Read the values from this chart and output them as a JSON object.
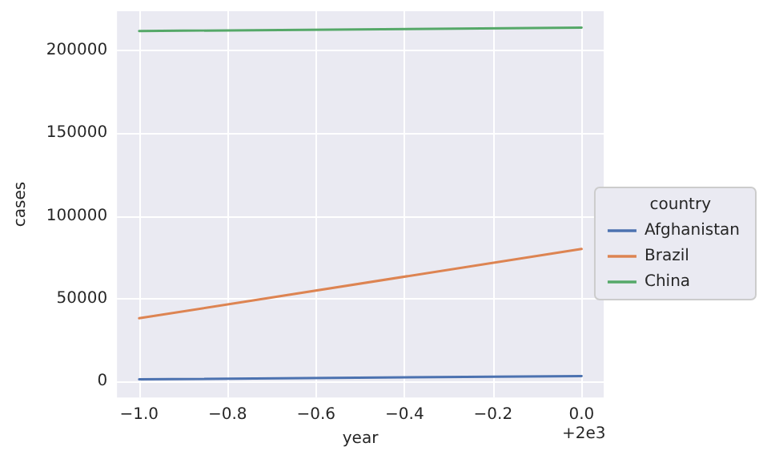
{
  "chart_data": {
    "type": "line",
    "xlabel": "year",
    "ylabel": "cases",
    "legend_title": "country",
    "x": [
      -1,
      0
    ],
    "series": [
      {
        "name": "Afghanistan",
        "color": "#4c72b0",
        "values": [
          1000,
          3000
        ]
      },
      {
        "name": "Brazil",
        "color": "#dd8452",
        "values": [
          38000,
          80000
        ]
      },
      {
        "name": "China",
        "color": "#55a868",
        "values": [
          212000,
          214000
        ]
      }
    ],
    "xlim": [
      -1.05,
      0.05
    ],
    "xticks": [
      {
        "value": -1,
        "label": "−1.0"
      },
      {
        "value": -0.8,
        "label": "−0.8"
      },
      {
        "value": -0.6,
        "label": "−0.6"
      },
      {
        "value": -0.4,
        "label": "−0.4"
      },
      {
        "value": -0.2,
        "label": "−0.2"
      },
      {
        "value": 0,
        "label": "0.0"
      }
    ],
    "ylim": [
      -10000,
      224000
    ],
    "yticks": [
      0,
      50000,
      100000,
      150000,
      200000
    ],
    "annotations": [
      "+2e3"
    ],
    "grid": true,
    "legend": "right",
    "marker": "none",
    "line_style": "solid"
  }
}
